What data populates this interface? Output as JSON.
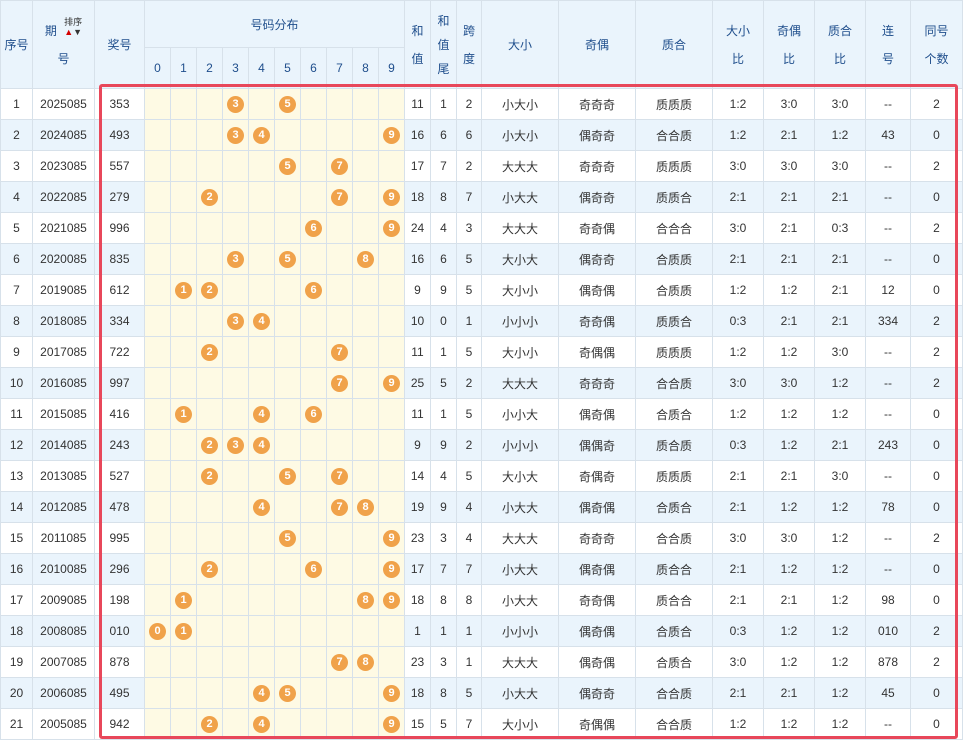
{
  "headers": {
    "seq": "序号",
    "period_top": "期",
    "period_bottom": "号",
    "sort_label": "排序",
    "prize": "奖号",
    "distribution": "号码分布",
    "digits": [
      "0",
      "1",
      "2",
      "3",
      "4",
      "5",
      "6",
      "7",
      "8",
      "9"
    ],
    "sum_top": "和",
    "sum_bottom": "值",
    "tail_top": "和",
    "tail_mid": "值",
    "tail_bottom": "尾",
    "span_top": "跨",
    "span_bottom": "度",
    "size": "大小",
    "parity": "奇偶",
    "prime": "质合",
    "size_ratio_top": "大小",
    "size_ratio_bottom": "比",
    "parity_ratio_top": "奇偶",
    "parity_ratio_bottom": "比",
    "prime_ratio_top": "质合",
    "prime_ratio_bottom": "比",
    "consec_top": "连",
    "consec_bottom": "号",
    "same_top": "同号",
    "same_bottom": "个数"
  },
  "rows": [
    {
      "seq": "1",
      "period": "2025085",
      "prize": "353",
      "sum": "11",
      "tail": "1",
      "span": "2",
      "size": "小大小",
      "parity": "奇奇奇",
      "prime": "质质质",
      "size_ratio": "1:2",
      "parity_ratio": "3:0",
      "prime_ratio": "3:0",
      "consec": "--",
      "same": "2"
    },
    {
      "seq": "2",
      "period": "2024085",
      "prize": "493",
      "sum": "16",
      "tail": "6",
      "span": "6",
      "size": "小大小",
      "parity": "偶奇奇",
      "prime": "合合质",
      "size_ratio": "1:2",
      "parity_ratio": "2:1",
      "prime_ratio": "1:2",
      "consec": "43",
      "same": "0"
    },
    {
      "seq": "3",
      "period": "2023085",
      "prize": "557",
      "sum": "17",
      "tail": "7",
      "span": "2",
      "size": "大大大",
      "parity": "奇奇奇",
      "prime": "质质质",
      "size_ratio": "3:0",
      "parity_ratio": "3:0",
      "prime_ratio": "3:0",
      "consec": "--",
      "same": "2"
    },
    {
      "seq": "4",
      "period": "2022085",
      "prize": "279",
      "sum": "18",
      "tail": "8",
      "span": "7",
      "size": "小大大",
      "parity": "偶奇奇",
      "prime": "质质合",
      "size_ratio": "2:1",
      "parity_ratio": "2:1",
      "prime_ratio": "2:1",
      "consec": "--",
      "same": "0"
    },
    {
      "seq": "5",
      "period": "2021085",
      "prize": "996",
      "sum": "24",
      "tail": "4",
      "span": "3",
      "size": "大大大",
      "parity": "奇奇偶",
      "prime": "合合合",
      "size_ratio": "3:0",
      "parity_ratio": "2:1",
      "prime_ratio": "0:3",
      "consec": "--",
      "same": "2"
    },
    {
      "seq": "6",
      "period": "2020085",
      "prize": "835",
      "sum": "16",
      "tail": "6",
      "span": "5",
      "size": "大小大",
      "parity": "偶奇奇",
      "prime": "合质质",
      "size_ratio": "2:1",
      "parity_ratio": "2:1",
      "prime_ratio": "2:1",
      "consec": "--",
      "same": "0"
    },
    {
      "seq": "7",
      "period": "2019085",
      "prize": "612",
      "sum": "9",
      "tail": "9",
      "span": "5",
      "size": "大小小",
      "parity": "偶奇偶",
      "prime": "合质质",
      "size_ratio": "1:2",
      "parity_ratio": "1:2",
      "prime_ratio": "2:1",
      "consec": "12",
      "same": "0"
    },
    {
      "seq": "8",
      "period": "2018085",
      "prize": "334",
      "sum": "10",
      "tail": "0",
      "span": "1",
      "size": "小小小",
      "parity": "奇奇偶",
      "prime": "质质合",
      "size_ratio": "0:3",
      "parity_ratio": "2:1",
      "prime_ratio": "2:1",
      "consec": "334",
      "same": "2"
    },
    {
      "seq": "9",
      "period": "2017085",
      "prize": "722",
      "sum": "11",
      "tail": "1",
      "span": "5",
      "size": "大小小",
      "parity": "奇偶偶",
      "prime": "质质质",
      "size_ratio": "1:2",
      "parity_ratio": "1:2",
      "prime_ratio": "3:0",
      "consec": "--",
      "same": "2"
    },
    {
      "seq": "10",
      "period": "2016085",
      "prize": "997",
      "sum": "25",
      "tail": "5",
      "span": "2",
      "size": "大大大",
      "parity": "奇奇奇",
      "prime": "合合质",
      "size_ratio": "3:0",
      "parity_ratio": "3:0",
      "prime_ratio": "1:2",
      "consec": "--",
      "same": "2"
    },
    {
      "seq": "11",
      "period": "2015085",
      "prize": "416",
      "sum": "11",
      "tail": "1",
      "span": "5",
      "size": "小小大",
      "parity": "偶奇偶",
      "prime": "合质合",
      "size_ratio": "1:2",
      "parity_ratio": "1:2",
      "prime_ratio": "1:2",
      "consec": "--",
      "same": "0"
    },
    {
      "seq": "12",
      "period": "2014085",
      "prize": "243",
      "sum": "9",
      "tail": "9",
      "span": "2",
      "size": "小小小",
      "parity": "偶偶奇",
      "prime": "质合质",
      "size_ratio": "0:3",
      "parity_ratio": "1:2",
      "prime_ratio": "2:1",
      "consec": "243",
      "same": "0"
    },
    {
      "seq": "13",
      "period": "2013085",
      "prize": "527",
      "sum": "14",
      "tail": "4",
      "span": "5",
      "size": "大小大",
      "parity": "奇偶奇",
      "prime": "质质质",
      "size_ratio": "2:1",
      "parity_ratio": "2:1",
      "prime_ratio": "3:0",
      "consec": "--",
      "same": "0"
    },
    {
      "seq": "14",
      "period": "2012085",
      "prize": "478",
      "sum": "19",
      "tail": "9",
      "span": "4",
      "size": "小大大",
      "parity": "偶奇偶",
      "prime": "合质合",
      "size_ratio": "2:1",
      "parity_ratio": "1:2",
      "prime_ratio": "1:2",
      "consec": "78",
      "same": "0"
    },
    {
      "seq": "15",
      "period": "2011085",
      "prize": "995",
      "sum": "23",
      "tail": "3",
      "span": "4",
      "size": "大大大",
      "parity": "奇奇奇",
      "prime": "合合质",
      "size_ratio": "3:0",
      "parity_ratio": "3:0",
      "prime_ratio": "1:2",
      "consec": "--",
      "same": "2"
    },
    {
      "seq": "16",
      "period": "2010085",
      "prize": "296",
      "sum": "17",
      "tail": "7",
      "span": "7",
      "size": "小大大",
      "parity": "偶奇偶",
      "prime": "质合合",
      "size_ratio": "2:1",
      "parity_ratio": "1:2",
      "prime_ratio": "1:2",
      "consec": "--",
      "same": "0"
    },
    {
      "seq": "17",
      "period": "2009085",
      "prize": "198",
      "sum": "18",
      "tail": "8",
      "span": "8",
      "size": "小大大",
      "parity": "奇奇偶",
      "prime": "质合合",
      "size_ratio": "2:1",
      "parity_ratio": "2:1",
      "prime_ratio": "1:2",
      "consec": "98",
      "same": "0"
    },
    {
      "seq": "18",
      "period": "2008085",
      "prize": "010",
      "sum": "1",
      "tail": "1",
      "span": "1",
      "size": "小小小",
      "parity": "偶奇偶",
      "prime": "合质合",
      "size_ratio": "0:3",
      "parity_ratio": "1:2",
      "prime_ratio": "1:2",
      "consec": "010",
      "same": "2"
    },
    {
      "seq": "19",
      "period": "2007085",
      "prize": "878",
      "sum": "23",
      "tail": "3",
      "span": "1",
      "size": "大大大",
      "parity": "偶奇偶",
      "prime": "合质合",
      "size_ratio": "3:0",
      "parity_ratio": "1:2",
      "prime_ratio": "1:2",
      "consec": "878",
      "same": "2"
    },
    {
      "seq": "20",
      "period": "2006085",
      "prize": "495",
      "sum": "18",
      "tail": "8",
      "span": "5",
      "size": "小大大",
      "parity": "偶奇奇",
      "prime": "合合质",
      "size_ratio": "2:1",
      "parity_ratio": "2:1",
      "prime_ratio": "1:2",
      "consec": "45",
      "same": "0"
    },
    {
      "seq": "21",
      "period": "2005085",
      "prize": "942",
      "sum": "15",
      "tail": "5",
      "span": "7",
      "size": "大小小",
      "parity": "奇偶偶",
      "prime": "合合质",
      "size_ratio": "1:2",
      "parity_ratio": "1:2",
      "prime_ratio": "1:2",
      "consec": "--",
      "same": "0"
    }
  ],
  "colors": {
    "header_bg": "#eaf4fc",
    "header_text": "#1f4e8c",
    "ball": "#f0a24a",
    "distribution_bg": "#fefae4",
    "highlight_frame": "#e8475a"
  },
  "icons": {
    "sort_up": "red-up-triangle",
    "sort_down": "dark-down-triangle"
  }
}
